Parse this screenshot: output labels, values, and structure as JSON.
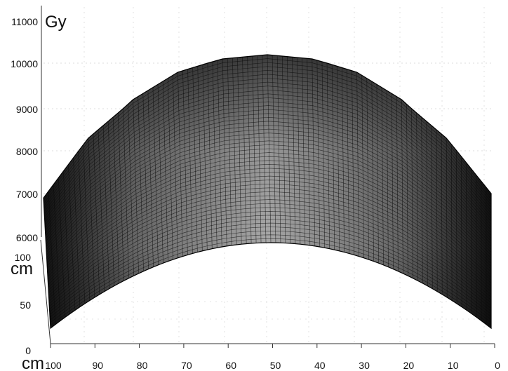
{
  "chart_data": {
    "type": "surface",
    "title": "",
    "zlabel": "Gy",
    "ylabel": "cm",
    "xlabel": "cm",
    "zlim": [
      6000,
      11000
    ],
    "z_ticks": [
      "11000",
      "10000",
      "9000",
      "8000",
      "7000",
      "6000"
    ],
    "y_ticks": [
      "100",
      "50",
      "0"
    ],
    "x_ticks": [
      "100",
      "90",
      "80",
      "70",
      "60",
      "50",
      "40",
      "30",
      "20",
      "10",
      "0"
    ],
    "xlim": [
      100,
      0
    ],
    "ylim": [
      0,
      100
    ],
    "grid": true,
    "series": [
      {
        "x": [
          100,
          90,
          80,
          70,
          60,
          50,
          40,
          30,
          20,
          10,
          0
        ],
        "z_max": [
          6900,
          8300,
          9200,
          9800,
          10100,
          10200,
          10100,
          9800,
          9200,
          8300,
          7000
        ],
        "z_min": [
          6000,
          6900,
          7500,
          7900,
          8100,
          8150,
          8100,
          7900,
          7500,
          6900,
          6000
        ]
      }
    ]
  }
}
